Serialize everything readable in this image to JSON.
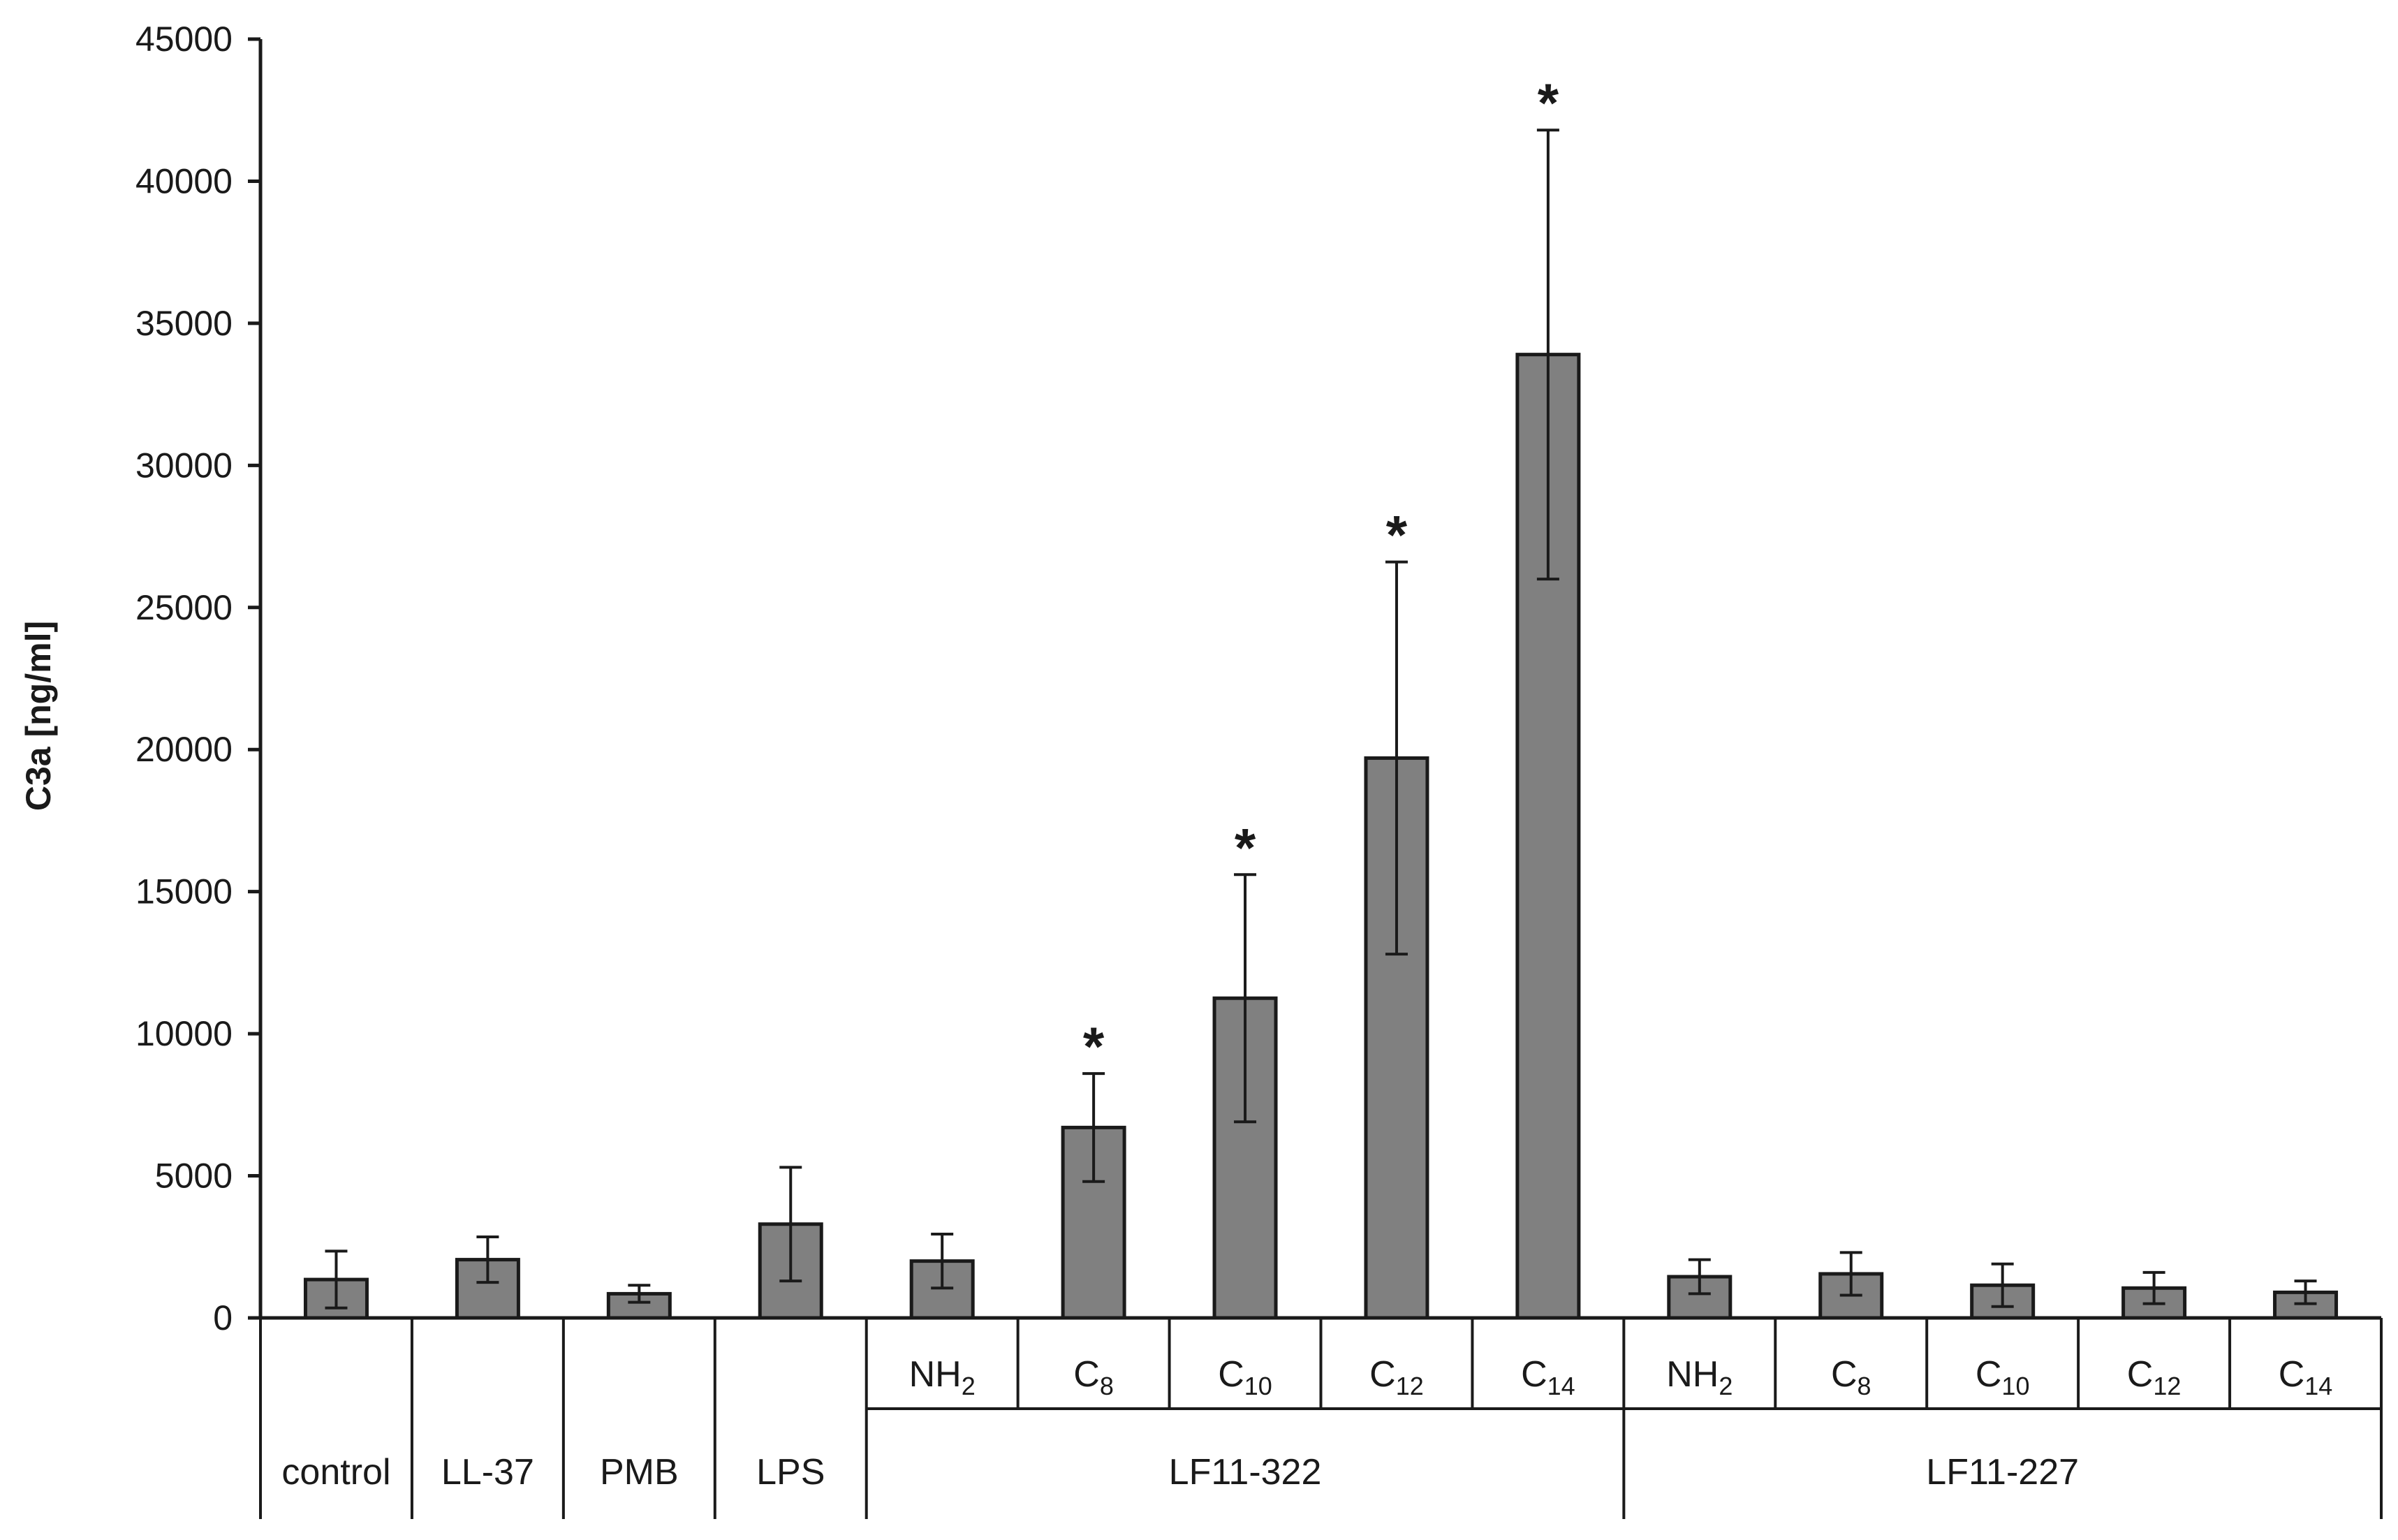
{
  "chart_data": {
    "type": "bar",
    "title": "",
    "ylabel": "C3a  [ng/ml]",
    "ylim": [
      0,
      45000
    ],
    "yticks": [
      "0",
      "5000",
      "10000",
      "15000",
      "20000",
      "25000",
      "30000",
      "35000",
      "40000",
      "45000"
    ],
    "bar_color": "#808080",
    "significance_marker": "*",
    "categories": [
      {
        "label": "control",
        "sub": "",
        "group": "",
        "value": 1350,
        "error": 1000,
        "significant": false
      },
      {
        "label": "LL-37",
        "sub": "",
        "group": "",
        "value": 2050,
        "error": 800,
        "significant": false
      },
      {
        "label": "PMB",
        "sub": "",
        "group": "",
        "value": 850,
        "error": 300,
        "significant": false
      },
      {
        "label": "LPS",
        "sub": "",
        "group": "",
        "value": 3300,
        "error": 2000,
        "significant": false
      },
      {
        "label": "NH",
        "sub": "2",
        "group": "LF11-322",
        "value": 2000,
        "error": 950,
        "significant": false
      },
      {
        "label": "C",
        "sub": "8",
        "group": "LF11-322",
        "value": 6700,
        "error": 1900,
        "significant": true
      },
      {
        "label": "C",
        "sub": "10",
        "group": "LF11-322",
        "value": 11250,
        "error": 4350,
        "significant": true
      },
      {
        "label": "C",
        "sub": "12",
        "group": "LF11-322",
        "value": 19700,
        "error": 6900,
        "significant": true
      },
      {
        "label": "C",
        "sub": "14",
        "group": "LF11-322",
        "value": 33900,
        "error": 7900,
        "significant": true
      },
      {
        "label": "NH",
        "sub": "2",
        "group": "LF11-227",
        "value": 1450,
        "error": 600,
        "significant": false
      },
      {
        "label": "C",
        "sub": "8",
        "group": "LF11-227",
        "value": 1550,
        "error": 750,
        "significant": false
      },
      {
        "label": "C",
        "sub": "10",
        "group": "LF11-227",
        "value": 1150,
        "error": 750,
        "significant": false
      },
      {
        "label": "C",
        "sub": "12",
        "group": "LF11-227",
        "value": 1050,
        "error": 550,
        "significant": false
      },
      {
        "label": "C",
        "sub": "14",
        "group": "LF11-227",
        "value": 900,
        "error": 400,
        "significant": false
      }
    ],
    "groups": [
      "LF11-322",
      "LF11-227"
    ]
  }
}
